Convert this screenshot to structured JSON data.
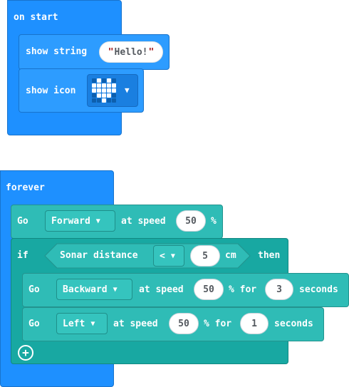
{
  "on_start": {
    "hat_label": "on start",
    "show_string": {
      "label": "show string",
      "value": "Hello!"
    },
    "show_icon": {
      "label": "show icon",
      "icon": "heart"
    }
  },
  "forever": {
    "hat_label": "forever",
    "go_forward": {
      "label": "Go",
      "direction": "Forward",
      "speed_label": "at speed",
      "speed": "50",
      "unit": "%"
    },
    "if_block": {
      "label": "if",
      "condition": {
        "sensor": "Sonar distance",
        "operator": "<",
        "value": "5",
        "unit": "cm"
      },
      "then_label": "then",
      "go_backward": {
        "label": "Go",
        "direction": "Backward",
        "speed_label": "at speed",
        "speed": "50",
        "for_label": "% for",
        "duration": "3",
        "seconds_label": "seconds"
      },
      "go_left": {
        "label": "Go",
        "direction": "Left",
        "speed_label": "at speed",
        "speed": "50",
        "for_label": "% for",
        "duration": "1",
        "seconds_label": "seconds"
      }
    }
  },
  "colors": {
    "basic_blue": "#1e90ff",
    "motor_teal": "#2fbcb6",
    "logic_teal": "#18a8a2"
  }
}
